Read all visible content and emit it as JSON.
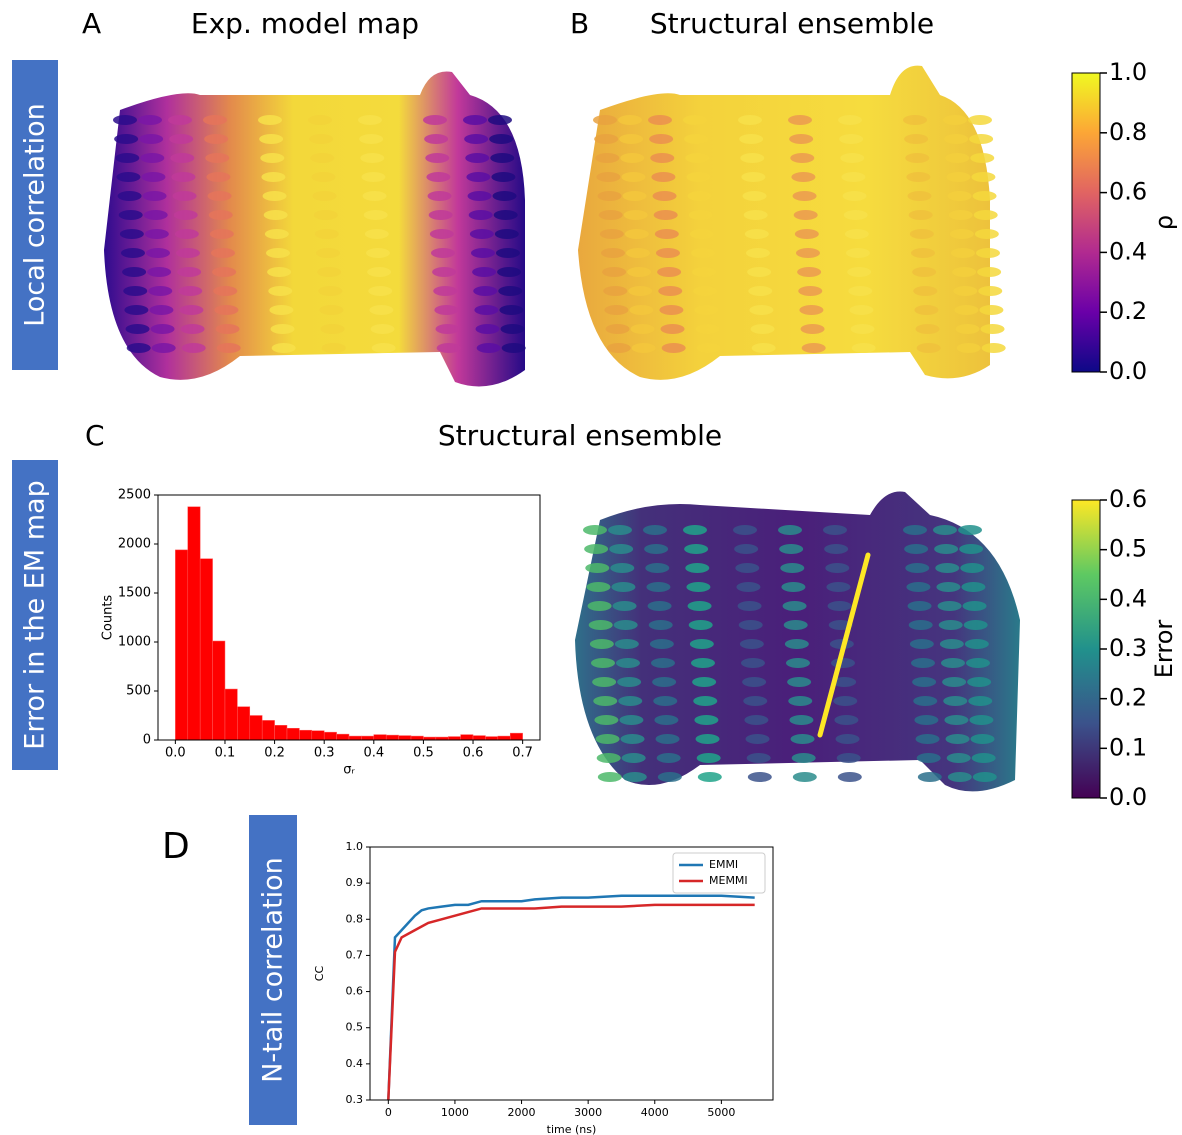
{
  "panels": [
    {
      "letter": "A",
      "title": "Exp. model map"
    },
    {
      "letter": "B",
      "title": "Structural ensemble"
    },
    {
      "letter": "C",
      "title": "Structural ensemble"
    },
    {
      "letter": "D"
    }
  ],
  "row_labels": [
    "Local correlation",
    "Error in the EM map",
    "N-tail correlation"
  ],
  "chart_data": [
    {
      "type": "histogram",
      "xlabel": "σᵣ",
      "ylabel": "Counts",
      "color": "#ff0000",
      "bins": [
        0,
        0.025,
        0.05,
        0.075,
        0.1,
        0.125,
        0.15,
        0.175,
        0.2,
        0.225,
        0.25,
        0.275,
        0.3,
        0.325,
        0.35,
        0.375,
        0.4,
        0.425,
        0.45,
        0.475,
        0.5,
        0.525,
        0.55,
        0.575,
        0.6,
        0.625,
        0.65,
        0.675,
        0.7
      ],
      "values": [
        1940,
        2380,
        1850,
        1010,
        520,
        340,
        250,
        200,
        150,
        120,
        100,
        95,
        80,
        60,
        40,
        40,
        55,
        50,
        45,
        40,
        30,
        30,
        35,
        55,
        45,
        35,
        40,
        70
      ],
      "xlim": [
        -0.035,
        0.735
      ],
      "xticks": [
        {
          "value": 0,
          "label": "0.0"
        },
        0.1,
        0.2,
        0.3,
        0.4,
        0.5,
        0.6,
        0.7
      ],
      "ylim": [
        0,
        2500
      ],
      "yticks": [
        0,
        500,
        1000,
        1500,
        2000,
        2500
      ]
    },
    {
      "type": "line",
      "xlabel": "time (ns)",
      "ylabel": "CC",
      "legend": "upper right",
      "x": [
        0,
        100,
        200,
        300,
        400,
        500,
        600,
        800,
        1000,
        1200,
        1400,
        1800,
        2000,
        2200,
        2600,
        3000,
        3500,
        4000,
        4500,
        5000,
        5500
      ],
      "series": [
        {
          "name": "EMMI",
          "color": "#1f77b4",
          "values": [
            0.3,
            0.75,
            0.77,
            0.79,
            0.81,
            0.825,
            0.83,
            0.835,
            0.84,
            0.84,
            0.85,
            0.85,
            0.85,
            0.855,
            0.86,
            0.86,
            0.865,
            0.865,
            0.865,
            0.865,
            0.86
          ]
        },
        {
          "name": "MEMMI",
          "color": "#d62728",
          "values": [
            0.3,
            0.71,
            0.75,
            0.76,
            0.77,
            0.78,
            0.79,
            0.8,
            0.81,
            0.82,
            0.83,
            0.83,
            0.83,
            0.83,
            0.835,
            0.835,
            0.835,
            0.84,
            0.84,
            0.84,
            0.84
          ]
        }
      ],
      "xlim": [
        -275,
        5775
      ],
      "xticks": [
        0,
        1000,
        2000,
        3000,
        4000,
        5000
      ],
      "ylim": [
        0.3,
        1.0
      ],
      "yticks": [
        0.3,
        0.4,
        0.5,
        0.6,
        0.7,
        0.8,
        0.9,
        {
          "value": 1,
          "label": "1.0"
        }
      ]
    },
    {
      "type": "colorbar",
      "label": "ρ",
      "colors": [
        "#0d0887",
        "#6a00a8",
        "#b12a90",
        "#e16462",
        "#fca636",
        "#f0f921"
      ],
      "ylim": [
        0,
        1
      ],
      "yticks": [
        {
          "value": 0,
          "label": "0.0"
        },
        0.2,
        0.4,
        0.6,
        0.8,
        {
          "value": 1,
          "label": "1.0"
        }
      ]
    },
    {
      "type": "colorbar",
      "label": "Error",
      "colors": [
        "#440154",
        "#3b528b",
        "#21918c",
        "#5ec962",
        "#fde725"
      ],
      "ylim": [
        0,
        0.6
      ],
      "yticks": [
        {
          "value": 0,
          "label": "0.0"
        },
        0.1,
        0.2,
        0.3,
        0.4,
        0.5,
        0.6
      ]
    }
  ]
}
